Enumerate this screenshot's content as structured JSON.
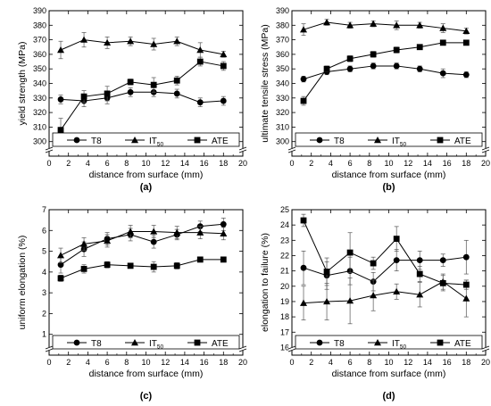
{
  "chart_data": [
    {
      "type": "line",
      "panel_label": "(a)",
      "xlabel": "distance from surface (mm)",
      "ylabel": "yield strength (MPa)",
      "xlim": [
        0,
        20
      ],
      "ylim": [
        290,
        390
      ],
      "xticks": [
        0,
        2,
        4,
        6,
        8,
        10,
        12,
        14,
        16,
        18,
        20
      ],
      "yticks": [
        300,
        310,
        320,
        330,
        340,
        350,
        360,
        370,
        380,
        390
      ],
      "axis_break": "bottom",
      "grid": false,
      "legend_position": "bottom",
      "x": [
        1.2,
        3.6,
        6.0,
        8.4,
        10.8,
        13.2,
        15.6,
        18.0
      ],
      "series": [
        {
          "name": "T8",
          "marker": "circle",
          "values": [
            329,
            328,
            330,
            334,
            334,
            333,
            327,
            328
          ],
          "errors": [
            3,
            4,
            4,
            3,
            3,
            3,
            3,
            3
          ]
        },
        {
          "name": "IT",
          "name_subscript": "50",
          "marker": "triangle",
          "values": [
            363,
            370,
            368,
            369,
            367,
            369,
            363,
            360
          ],
          "errors": [
            6,
            5,
            4,
            3,
            4,
            3,
            5,
            2
          ]
        },
        {
          "name": "ATE",
          "marker": "square",
          "values": [
            308,
            331,
            333,
            341,
            339,
            342,
            355,
            352
          ],
          "errors": [
            8,
            4,
            5,
            2,
            5,
            3,
            3,
            3
          ]
        }
      ]
    },
    {
      "type": "line",
      "panel_label": "(b)",
      "xlabel": "distance from surface (mm)",
      "ylabel": "ultimate tensile stress (MPa)",
      "xlim": [
        0,
        20
      ],
      "ylim": [
        290,
        390
      ],
      "xticks": [
        0,
        2,
        4,
        6,
        8,
        10,
        12,
        14,
        16,
        18,
        20
      ],
      "yticks": [
        300,
        310,
        320,
        330,
        340,
        350,
        360,
        370,
        380,
        390
      ],
      "axis_break": "bottom",
      "grid": false,
      "legend_position": "bottom",
      "x": [
        1.2,
        3.6,
        6.0,
        8.4,
        10.8,
        13.2,
        15.6,
        18.0
      ],
      "series": [
        {
          "name": "T8",
          "marker": "circle",
          "values": [
            343,
            348,
            350,
            352,
            352,
            350,
            347,
            346
          ],
          "errors": [
            2,
            2,
            2,
            2,
            2,
            2,
            3,
            2
          ]
        },
        {
          "name": "IT",
          "name_subscript": "50",
          "marker": "triangle",
          "values": [
            377,
            382,
            380,
            381,
            380,
            380,
            378,
            376
          ],
          "errors": [
            4,
            2,
            2,
            2,
            3,
            2,
            3,
            2
          ]
        },
        {
          "name": "ATE",
          "marker": "square",
          "values": [
            328,
            350,
            357,
            360,
            363,
            365,
            368,
            368
          ],
          "errors": [
            3,
            2,
            2,
            2,
            2,
            1,
            1,
            1
          ]
        }
      ]
    },
    {
      "type": "line",
      "panel_label": "(c)",
      "xlabel": "distance from surface (mm)",
      "ylabel": "uniform elongation (%)",
      "xlim": [
        0,
        20
      ],
      "ylim": [
        0,
        7
      ],
      "xticks": [
        0,
        2,
        4,
        6,
        8,
        10,
        12,
        14,
        16,
        18,
        20
      ],
      "yticks": [
        1,
        2,
        3,
        4,
        5,
        6,
        7
      ],
      "axis_break": "bottom",
      "grid": false,
      "legend_position": "bottom",
      "x": [
        1.2,
        3.6,
        6.0,
        8.4,
        10.8,
        13.2,
        15.6,
        18.0
      ],
      "series": [
        {
          "name": "T8",
          "marker": "circle",
          "values": [
            4.35,
            5.1,
            5.6,
            5.8,
            5.45,
            5.8,
            6.2,
            6.3
          ],
          "errors": [
            0.4,
            0.35,
            0.3,
            0.3,
            0.3,
            0.25,
            0.25,
            0.3
          ]
        },
        {
          "name": "IT",
          "name_subscript": "50",
          "marker": "triangle",
          "values": [
            4.8,
            5.35,
            5.5,
            5.95,
            5.95,
            5.9,
            5.9,
            5.85
          ],
          "errors": [
            0.35,
            0.3,
            0.3,
            0.3,
            0.3,
            0.3,
            0.3,
            0.3
          ]
        },
        {
          "name": "ATE",
          "marker": "square",
          "values": [
            3.7,
            4.15,
            4.35,
            4.3,
            4.25,
            4.3,
            4.6,
            4.6
          ],
          "errors": [
            0.15,
            0.2,
            0.15,
            0.1,
            0.25,
            0.15,
            0.05,
            0.05
          ]
        }
      ]
    },
    {
      "type": "line",
      "panel_label": "(d)",
      "xlabel": "distance from surface (mm)",
      "ylabel": "elongation to failure (%)",
      "xlim": [
        0,
        20
      ],
      "ylim": [
        15.5,
        25
      ],
      "xticks": [
        0,
        2,
        4,
        6,
        8,
        10,
        12,
        14,
        16,
        18,
        20
      ],
      "yticks": [
        16,
        17,
        18,
        19,
        20,
        21,
        22,
        23,
        24,
        25
      ],
      "axis_break": "bottom",
      "grid": false,
      "legend_position": "bottom",
      "x": [
        1.2,
        3.6,
        6.0,
        8.4,
        10.8,
        13.2,
        15.6,
        18.0
      ],
      "series": [
        {
          "name": "T8",
          "marker": "circle",
          "values": [
            21.2,
            20.7,
            21.0,
            20.3,
            21.7,
            21.7,
            21.7,
            21.9
          ],
          "errors": [
            1.1,
            0.9,
            0.9,
            0.6,
            0.7,
            0.6,
            0.4,
            1.1
          ]
        },
        {
          "name": "IT",
          "name_subscript": "50",
          "marker": "triangle",
          "values": [
            18.9,
            19.0,
            19.05,
            19.4,
            19.65,
            19.45,
            20.3,
            19.2
          ],
          "errors": [
            1.1,
            1.2,
            1.5,
            1.0,
            0.5,
            0.8,
            0.5,
            1.2
          ]
        },
        {
          "name": "ATE",
          "marker": "square",
          "values": [
            24.3,
            20.95,
            22.2,
            21.5,
            23.1,
            20.8,
            20.2,
            20.1
          ],
          "errors": [
            0.4,
            0.9,
            1.3,
            0.4,
            0.8,
            0.5,
            0.5,
            0.3
          ]
        }
      ]
    }
  ]
}
